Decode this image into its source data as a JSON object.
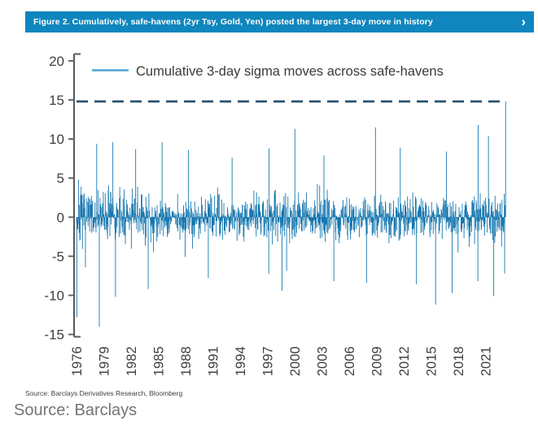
{
  "figure_bar": {
    "title": "Figure 2. Cumulatively, safe-havens (2yr Tsy, Gold, Yen) posted the largest 3-day move in history",
    "chevron": "›",
    "bg_color": "#0f86bd"
  },
  "chart_data": {
    "type": "line",
    "legend": "Cumulative 3-day sigma moves across safe-havens",
    "x_tick_labels": [
      "1976",
      "1979",
      "1982",
      "1985",
      "1988",
      "1991",
      "1994",
      "1997",
      "2000",
      "2003",
      "2006",
      "2009",
      "2012",
      "2015",
      "2018",
      "2021"
    ],
    "y_ticks": [
      20,
      15,
      10,
      5,
      0,
      -5,
      -10,
      -15
    ],
    "ylim": [
      -15,
      20
    ],
    "x_range_years": [
      1976,
      2023.2
    ],
    "grid": false,
    "series_color": "#1878b0",
    "legend_swatch_color": "#4fa3d2",
    "axis_color": "#595959",
    "tick_label_color": "#3f3f3f",
    "reference_line": {
      "value": 14.8,
      "style": "dashed",
      "color": "#28536e",
      "meaning": "largest cumulative 3-day move on record, reached at the final data point"
    },
    "final_point": {
      "year": 2023.2,
      "value": 14.8
    },
    "notable_points": [
      {
        "year": 1976.05,
        "value": -12.8
      },
      {
        "year": 1976.2,
        "value": 4.8
      },
      {
        "year": 1978.2,
        "value": 9.4
      },
      {
        "year": 1978.5,
        "value": -14.0
      },
      {
        "year": 1980.0,
        "value": 9.6
      },
      {
        "year": 1980.3,
        "value": -10.2
      },
      {
        "year": 1982.5,
        "value": 8.7
      },
      {
        "year": 1983.9,
        "value": -9.2
      },
      {
        "year": 1985.4,
        "value": 9.6
      },
      {
        "year": 1988.3,
        "value": 8.6
      },
      {
        "year": 1990.5,
        "value": -7.8
      },
      {
        "year": 1993.1,
        "value": 7.6
      },
      {
        "year": 1997.2,
        "value": 8.8
      },
      {
        "year": 1998.6,
        "value": -9.4
      },
      {
        "year": 2000.0,
        "value": 11.3
      },
      {
        "year": 2003.2,
        "value": 7.9
      },
      {
        "year": 2004.3,
        "value": -8.2
      },
      {
        "year": 2007.9,
        "value": -8.4
      },
      {
        "year": 2008.9,
        "value": 11.5
      },
      {
        "year": 2011.6,
        "value": 8.9
      },
      {
        "year": 2013.4,
        "value": -8.6
      },
      {
        "year": 2015.5,
        "value": -11.2
      },
      {
        "year": 2016.7,
        "value": 8.4
      },
      {
        "year": 2017.3,
        "value": -9.7
      },
      {
        "year": 2020.15,
        "value": -8.2
      },
      {
        "year": 2020.2,
        "value": 11.8
      },
      {
        "year": 2021.3,
        "value": 10.4
      },
      {
        "year": 2021.9,
        "value": -10.1
      },
      {
        "year": 2023.1,
        "value": -7.2
      }
    ],
    "noise": {
      "seed": 7,
      "points": 1300,
      "sigma_scale": 2.5,
      "tail_prob": 0.045,
      "tail_mult": 1.9,
      "clip": 8.6,
      "era_amplitudes": [
        {
          "until": 1985,
          "amp": 1.15
        },
        {
          "until": 1996,
          "amp": 0.95
        },
        {
          "until": 2003,
          "amp": 1.05
        },
        {
          "until": 2013,
          "amp": 1.0
        },
        {
          "until": 2019,
          "amp": 0.9
        },
        {
          "until": 2024,
          "amp": 1.05
        }
      ]
    }
  },
  "sources": {
    "chart_source": "Source: Barclays Derivatives Research, Bloomberg",
    "caption": "Source: Barclays"
  }
}
